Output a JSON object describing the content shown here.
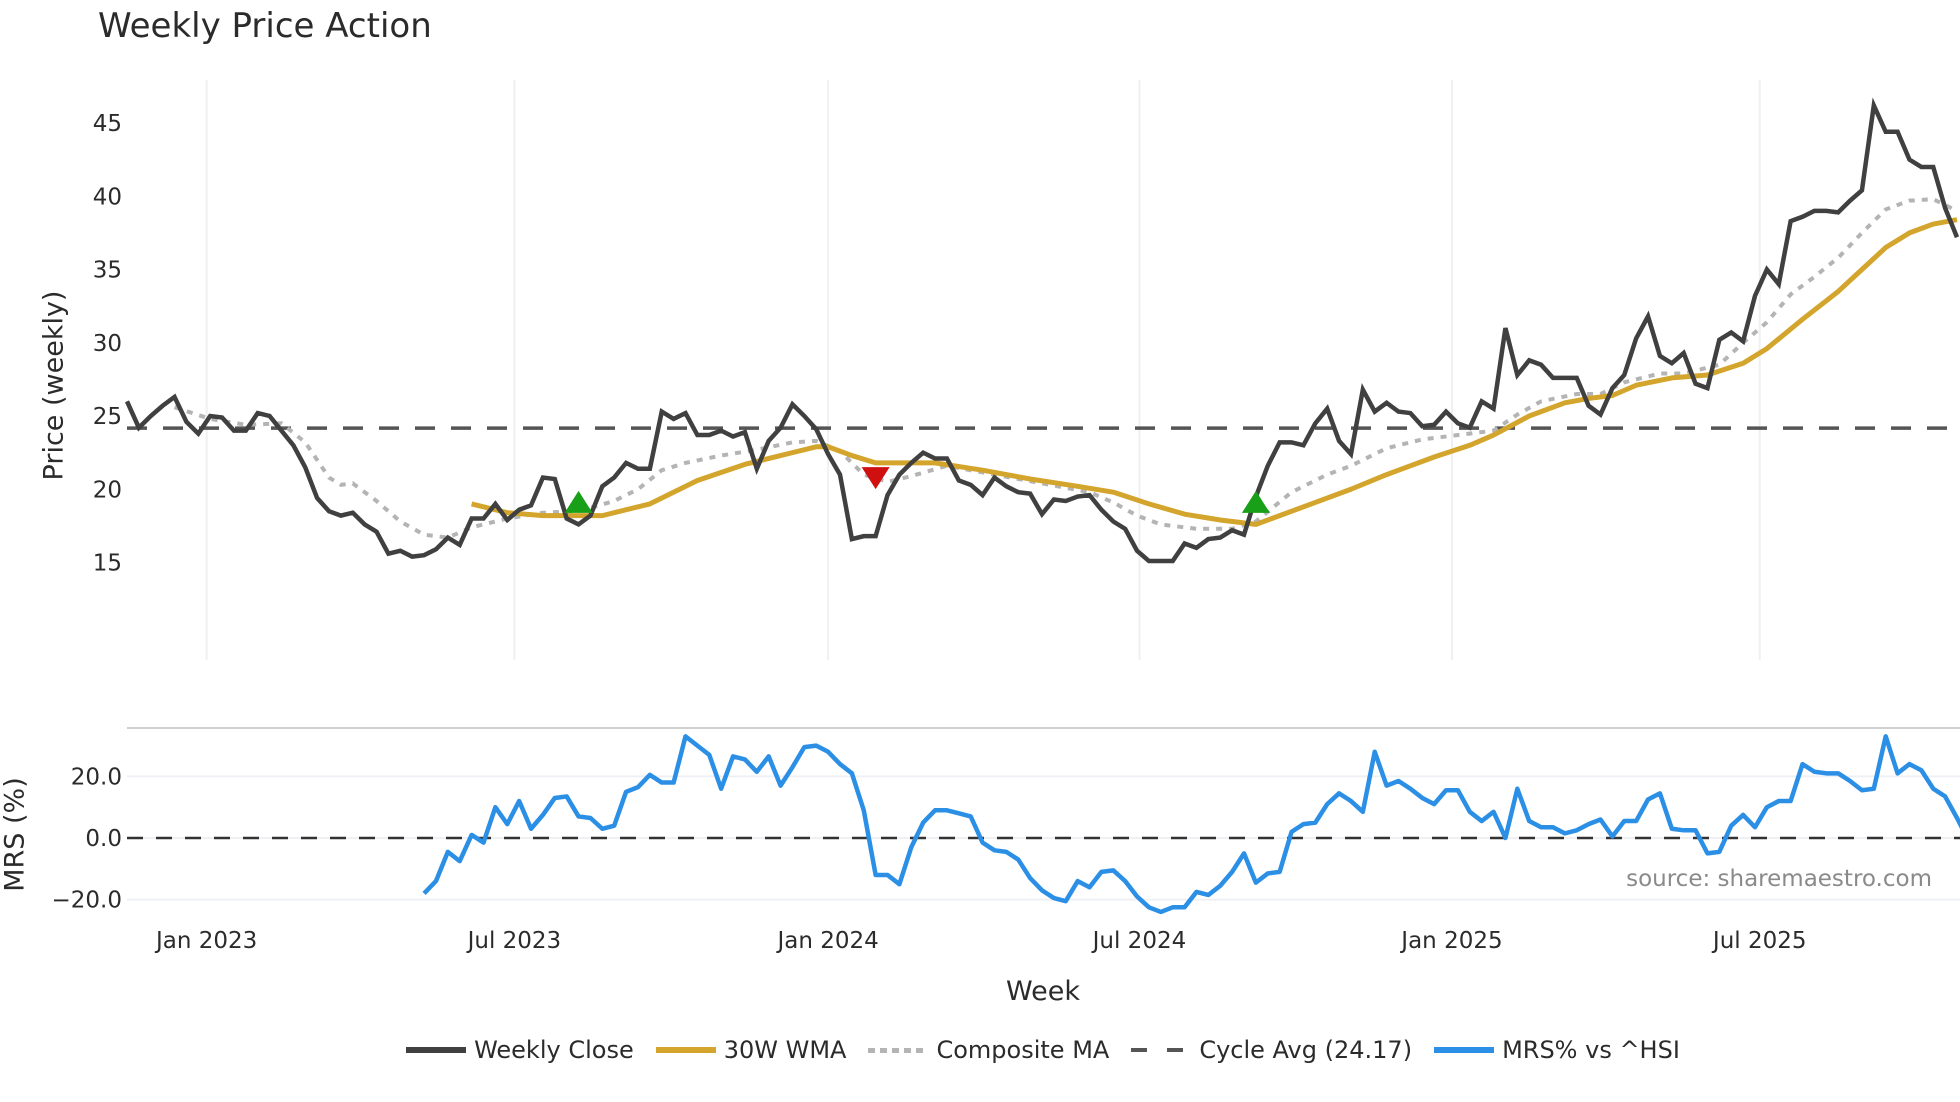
{
  "title": "Weekly Price Action",
  "price_panel": {
    "ylabel": "Price (weekly)",
    "yticks": [
      15,
      20,
      25,
      30,
      35,
      40,
      45
    ]
  },
  "mrs_panel": {
    "ylabel": "MRS (%)",
    "yticks": [
      "20.0",
      "0.0",
      "−20.0"
    ]
  },
  "xaxis": {
    "label": "Week",
    "ticks": [
      "Jan 2023",
      "Jul 2023",
      "Jan 2024",
      "Jul 2024",
      "Jan 2025",
      "Jul 2025"
    ]
  },
  "source_note": "source: sharemaestro.com",
  "legend": [
    {
      "label": "Weekly Close",
      "color": "#404040",
      "style": "solid"
    },
    {
      "label": "30W WMA",
      "color": "#d4a52c",
      "style": "solid"
    },
    {
      "label": "Composite MA",
      "color": "#b4b4b4",
      "style": "dotted"
    },
    {
      "label": "Cycle Avg (24.17)",
      "color": "#555555",
      "style": "dashed"
    },
    {
      "label": "MRS% vs ^HSI",
      "color": "#2b8fe6",
      "style": "solid"
    }
  ],
  "colors": {
    "close": "#404040",
    "wma": "#d4a52c",
    "composite": "#b4b4b4",
    "cycle": "#555555",
    "mrs": "#2b8fe6",
    "buy_marker": "#18a018",
    "sell_marker": "#d01010",
    "grid": "#eef0f4"
  },
  "chart_data": [
    {
      "type": "line",
      "title": "Weekly Price Action",
      "xlabel": "Week",
      "ylabel": "Price (weekly)",
      "ylim": [
        13.3,
        48.5
      ],
      "grid": true,
      "legend_position": "bottom",
      "x_ticks": [
        "Jan 2023",
        "Jul 2023",
        "Jan 2024",
        "Jul 2024",
        "Jan 2025",
        "Jul 2025"
      ],
      "x_tick_week_index": [
        6.7,
        32.6,
        59.0,
        85.2,
        111.5,
        137.4
      ],
      "x_start": "approx. mid-Nov 2022",
      "series": [
        {
          "name": "Weekly Close",
          "start_index": 0,
          "values": [
            26.0,
            24.2,
            25.0,
            25.7,
            26.3,
            24.6,
            23.8,
            25.0,
            24.9,
            24.0,
            24.0,
            25.2,
            25.0,
            24.0,
            23.0,
            21.5,
            19.4,
            18.5,
            18.2,
            18.4,
            17.6,
            17.1,
            15.6,
            15.8,
            15.4,
            15.5,
            15.9,
            16.7,
            16.2,
            18.0,
            18.0,
            19.0,
            17.9,
            18.6,
            18.9,
            20.8,
            20.7,
            18.0,
            17.6,
            18.2,
            20.2,
            20.8,
            21.8,
            21.4,
            21.4,
            25.3,
            24.8,
            25.2,
            23.7,
            23.7,
            24.0,
            23.6,
            23.9,
            21.4,
            23.3,
            24.2,
            25.8,
            25.0,
            24.1,
            22.4,
            21.0,
            16.6,
            16.8,
            16.8,
            19.6,
            21.0,
            21.8,
            22.5,
            22.1,
            22.1,
            20.6,
            20.3,
            19.6,
            20.8,
            20.2,
            19.8,
            19.7,
            18.3,
            19.3,
            19.2,
            19.5,
            19.6,
            18.6,
            17.8,
            17.3,
            15.8,
            15.1,
            15.1,
            15.1,
            16.3,
            16.0,
            16.6,
            16.7,
            17.2,
            16.9,
            19.5,
            21.6,
            23.2,
            23.2,
            23.0,
            24.5,
            25.5,
            23.3,
            22.4,
            26.8,
            25.3,
            25.9,
            25.3,
            25.2,
            24.3,
            24.4,
            25.3,
            24.5,
            24.2,
            26.0,
            25.5,
            31.0,
            27.8,
            28.8,
            28.5,
            27.6,
            27.6,
            27.6,
            25.7,
            25.1,
            26.9,
            27.8,
            30.3,
            31.8,
            29.1,
            28.6,
            29.3,
            27.2,
            26.9,
            30.2,
            30.7,
            30.1,
            33.2,
            35.0,
            34.0,
            38.3,
            38.6,
            39.0,
            39.0,
            38.9,
            39.7,
            40.4,
            46.2,
            44.4,
            44.4,
            42.5,
            42.0,
            42.0,
            39.2,
            37.2
          ]
        },
        {
          "name": "30W WMA",
          "anchors": [
            [
              29,
              19.0
            ],
            [
              32,
              18.4
            ],
            [
              35,
              18.2
            ],
            [
              40,
              18.2
            ],
            [
              44,
              19.0
            ],
            [
              48,
              20.6
            ],
            [
              52,
              21.7
            ],
            [
              56,
              22.5
            ],
            [
              58,
              22.9
            ],
            [
              59,
              22.9
            ],
            [
              61,
              22.3
            ],
            [
              63,
              21.8
            ],
            [
              68,
              21.8
            ],
            [
              72,
              21.3
            ],
            [
              76,
              20.7
            ],
            [
              80,
              20.2
            ],
            [
              83,
              19.8
            ],
            [
              86,
              19.0
            ],
            [
              89,
              18.3
            ],
            [
              92,
              17.9
            ],
            [
              95,
              17.6
            ],
            [
              97,
              18.2
            ],
            [
              100,
              19.1
            ],
            [
              103,
              20.0
            ],
            [
              106,
              21.0
            ],
            [
              110,
              22.2
            ],
            [
              113,
              23.0
            ],
            [
              115,
              23.7
            ],
            [
              118,
              25.0
            ],
            [
              121,
              25.9
            ],
            [
              123,
              26.2
            ],
            [
              125,
              26.4
            ],
            [
              127,
              27.1
            ],
            [
              130,
              27.6
            ],
            [
              133,
              27.8
            ],
            [
              136,
              28.6
            ],
            [
              138,
              29.6
            ],
            [
              141,
              31.6
            ],
            [
              144,
              33.5
            ],
            [
              146,
              35.0
            ],
            [
              148,
              36.5
            ],
            [
              150,
              37.5
            ],
            [
              152,
              38.1
            ],
            [
              154,
              38.4
            ]
          ]
        },
        {
          "name": "Composite MA",
          "anchors": [
            [
              4,
              25.6
            ],
            [
              7,
              24.8
            ],
            [
              10,
              24.4
            ],
            [
              13,
              24.5
            ],
            [
              15,
              23.2
            ],
            [
              17,
              20.8
            ],
            [
              18,
              20.3
            ],
            [
              19,
              20.4
            ],
            [
              21,
              19.2
            ],
            [
              23,
              17.8
            ],
            [
              25,
              16.9
            ],
            [
              27,
              16.7
            ],
            [
              29,
              17.4
            ],
            [
              32,
              18.0
            ],
            [
              35,
              18.4
            ],
            [
              38,
              18.5
            ],
            [
              41,
              19.2
            ],
            [
              43,
              20.0
            ],
            [
              45,
              21.3
            ],
            [
              47,
              21.8
            ],
            [
              50,
              22.3
            ],
            [
              53,
              22.7
            ],
            [
              56,
              23.2
            ],
            [
              58,
              23.3
            ],
            [
              60,
              22.6
            ],
            [
              62,
              21.0
            ],
            [
              64,
              20.5
            ],
            [
              66,
              20.9
            ],
            [
              69,
              21.6
            ],
            [
              73,
              21.0
            ],
            [
              77,
              20.4
            ],
            [
              81,
              19.8
            ],
            [
              83,
              19.1
            ],
            [
              85,
              18.2
            ],
            [
              87,
              17.6
            ],
            [
              90,
              17.3
            ],
            [
              93,
              17.3
            ],
            [
              95,
              17.8
            ],
            [
              98,
              19.8
            ],
            [
              101,
              21.0
            ],
            [
              103,
              21.6
            ],
            [
              106,
              22.8
            ],
            [
              109,
              23.4
            ],
            [
              112,
              23.7
            ],
            [
              115,
              24.0
            ],
            [
              117,
              25.1
            ],
            [
              119,
              26.0
            ],
            [
              122,
              26.5
            ],
            [
              124,
              26.5
            ],
            [
              126,
              27.3
            ],
            [
              129,
              27.9
            ],
            [
              131,
              27.9
            ],
            [
              134,
              28.5
            ],
            [
              136,
              30.0
            ],
            [
              138,
              31.4
            ],
            [
              140,
              33.3
            ],
            [
              142,
              34.5
            ],
            [
              144,
              35.8
            ],
            [
              146,
              37.5
            ],
            [
              148,
              39.1
            ],
            [
              150,
              39.7
            ],
            [
              152,
              39.8
            ],
            [
              154,
              39.0
            ]
          ]
        },
        {
          "name": "Cycle Avg (24.17)",
          "constant": 24.17
        },
        {
          "name": "Buy signals",
          "markers": [
            [
              38,
              19.0
            ],
            [
              95,
              19.0
            ]
          ]
        },
        {
          "name": "Sell signals",
          "markers": [
            [
              63,
              20.9
            ]
          ]
        }
      ]
    },
    {
      "type": "line",
      "ylabel": "MRS (%)",
      "ylim": [
        -28,
        36
      ],
      "yticks": [
        -20,
        0,
        20
      ],
      "reference_line": 0,
      "series": [
        {
          "name": "MRS% vs ^HSI",
          "start_index": 25,
          "values": [
            -18,
            -14,
            -4.5,
            -7.5,
            1,
            -1.5,
            10,
            4.5,
            12,
            3,
            7.5,
            13,
            13.5,
            7,
            6.5,
            3,
            4,
            15,
            16.5,
            20.5,
            18,
            18,
            33,
            30,
            27,
            16,
            26.5,
            25.5,
            21.5,
            26.5,
            17,
            23,
            29.5,
            30,
            28,
            24,
            21,
            9,
            -12,
            -12,
            -15,
            -3,
            5,
            9,
            9,
            8,
            7,
            -1.5,
            -4,
            -4.5,
            -7,
            -13,
            -17,
            -19.5,
            -20.5,
            -14,
            -16,
            -11,
            -10.5,
            -14,
            -19,
            -22.5,
            -24,
            -22.5,
            -22.5,
            -17.5,
            -18.5,
            -15.5,
            -11,
            -5,
            -14.5,
            -11.5,
            -11,
            2,
            4.5,
            5,
            11,
            14.5,
            12,
            8.5,
            28,
            17,
            18.5,
            16,
            13,
            11,
            15.5,
            15.5,
            8.5,
            5.5,
            8.5,
            0,
            16,
            5.5,
            3.5,
            3.5,
            1.5,
            2.5,
            4.5,
            6,
            0.5,
            5.5,
            5.5,
            12.5,
            14.5,
            3,
            2.5,
            2.5,
            -5,
            -4.5,
            4,
            7.5,
            3.5,
            10,
            12,
            12,
            24,
            21.5,
            21,
            21,
            18.5,
            15.5,
            16,
            33,
            21,
            24,
            22,
            16,
            13.5,
            6.5,
            -1
          ]
        }
      ]
    }
  ]
}
